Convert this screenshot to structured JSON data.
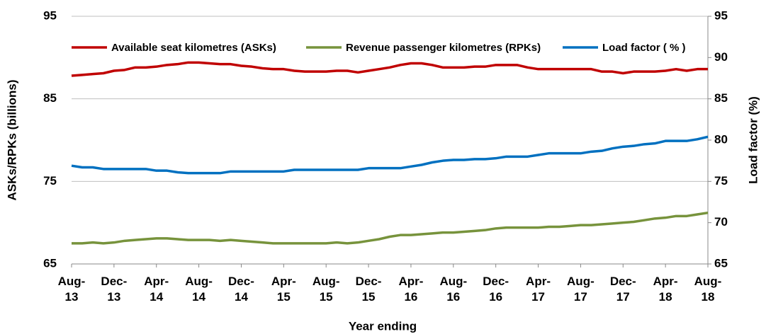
{
  "chart_data": {
    "type": "line",
    "categories": [
      "Aug- 13",
      null,
      null,
      null,
      "Dec- 13",
      null,
      null,
      null,
      "Apr- 14",
      null,
      null,
      null,
      "Aug- 14",
      null,
      null,
      null,
      "Dec- 14",
      null,
      null,
      null,
      "Apr- 15",
      null,
      null,
      null,
      "Aug- 15",
      null,
      null,
      null,
      "Dec- 15",
      null,
      null,
      null,
      "Apr- 16",
      null,
      null,
      null,
      "Aug- 16",
      null,
      null,
      null,
      "Dec- 16",
      null,
      null,
      null,
      "Apr- 17",
      null,
      null,
      null,
      "Aug- 17",
      null,
      null,
      null,
      "Dec- 17",
      null,
      null,
      null,
      "Apr- 18",
      null,
      null,
      null,
      "Aug- 18"
    ],
    "series": [
      {
        "name": "Available seat kilometres (ASKs)",
        "color": "#c00000",
        "axis": "y",
        "values": [
          87.8,
          87.9,
          88.0,
          88.1,
          88.4,
          88.5,
          88.8,
          88.8,
          88.9,
          89.1,
          89.2,
          89.4,
          89.4,
          89.3,
          89.2,
          89.2,
          89.0,
          88.9,
          88.7,
          88.6,
          88.6,
          88.4,
          88.3,
          88.3,
          88.3,
          88.4,
          88.4,
          88.2,
          88.4,
          88.6,
          88.8,
          89.1,
          89.3,
          89.3,
          89.1,
          88.8,
          88.8,
          88.8,
          88.9,
          88.9,
          89.1,
          89.1,
          89.1,
          88.8,
          88.6,
          88.6,
          88.6,
          88.6,
          88.6,
          88.6,
          88.3,
          88.3,
          88.1,
          88.3,
          88.3,
          88.3,
          88.4,
          88.6,
          88.4,
          88.6,
          88.6
        ]
      },
      {
        "name": "Revenue passenger kilometres (RPKs)",
        "color": "#77933c",
        "axis": "y",
        "values": [
          67.5,
          67.5,
          67.6,
          67.5,
          67.6,
          67.8,
          67.9,
          68.0,
          68.1,
          68.1,
          68.0,
          67.9,
          67.9,
          67.9,
          67.8,
          67.9,
          67.8,
          67.7,
          67.6,
          67.5,
          67.5,
          67.5,
          67.5,
          67.5,
          67.5,
          67.6,
          67.5,
          67.6,
          67.8,
          68.0,
          68.3,
          68.5,
          68.5,
          68.6,
          68.7,
          68.8,
          68.8,
          68.9,
          69.0,
          69.1,
          69.3,
          69.4,
          69.4,
          69.4,
          69.4,
          69.5,
          69.5,
          69.6,
          69.7,
          69.7,
          69.8,
          69.9,
          70.0,
          70.1,
          70.3,
          70.5,
          70.6,
          70.8,
          70.8,
          71.0,
          71.2
        ]
      },
      {
        "name": "Load factor ( % )",
        "color": "#0070c0",
        "axis": "y2",
        "values": [
          76.9,
          76.7,
          76.7,
          76.5,
          76.5,
          76.5,
          76.5,
          76.5,
          76.3,
          76.3,
          76.1,
          76.0,
          76.0,
          76.0,
          76.0,
          76.2,
          76.2,
          76.2,
          76.2,
          76.2,
          76.2,
          76.4,
          76.4,
          76.4,
          76.4,
          76.4,
          76.4,
          76.4,
          76.6,
          76.6,
          76.6,
          76.6,
          76.8,
          77.0,
          77.3,
          77.5,
          77.6,
          77.6,
          77.7,
          77.7,
          77.8,
          78.0,
          78.0,
          78.0,
          78.2,
          78.4,
          78.4,
          78.4,
          78.4,
          78.6,
          78.7,
          79.0,
          79.2,
          79.3,
          79.5,
          79.6,
          79.9,
          79.9,
          79.9,
          80.1,
          80.4
        ]
      }
    ],
    "xlabel": "Year ending",
    "ylabel": "ASKs/RPKs (billions)",
    "y2label": "Load factor (%)",
    "ylim": [
      65,
      95
    ],
    "yticks": [
      65,
      75,
      85,
      95
    ],
    "y2lim": [
      65,
      95
    ],
    "y2ticks": [
      65,
      70,
      75,
      80,
      85,
      90,
      95
    ],
    "grid": true,
    "legend": "top"
  }
}
